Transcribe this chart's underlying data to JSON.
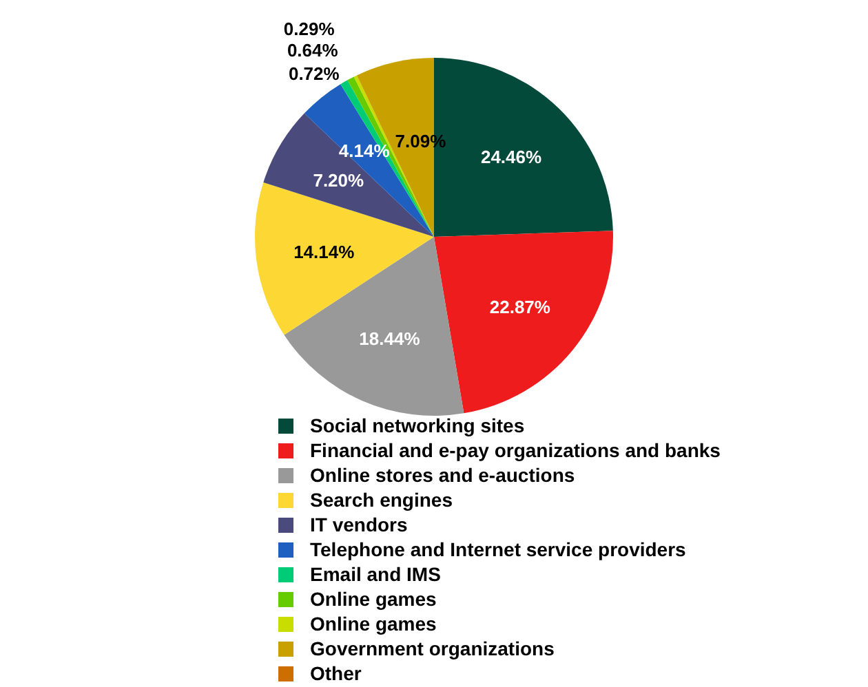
{
  "chart_data": {
    "type": "pie",
    "categories": [
      "Social networking sites",
      "Financial and e-pay organizations and banks",
      "Online stores and e-auctions",
      "Search engines",
      "IT vendors",
      "Telephone and Internet service providers",
      "Email and IMS",
      "Online games",
      "Online games",
      "Government organizations",
      "Other"
    ],
    "values": [
      24.46,
      22.87,
      18.44,
      14.14,
      7.2,
      4.14,
      0.72,
      0.64,
      0.29,
      7.09,
      null
    ],
    "value_labels": [
      "24.46%",
      "22.87%",
      "18.44%",
      "14.14%",
      "7.20%",
      "4.14%",
      "0.72%",
      "0.64%",
      "0.29%",
      "7.09%",
      null
    ],
    "colors": [
      "#034a3b",
      "#ee1c1c",
      "#999999",
      "#fdd835",
      "#4a4a7c",
      "#1f5fbf",
      "#00cc77",
      "#66cc00",
      "#c8dd00",
      "#c8a000",
      "#cc6f00"
    ],
    "legend": "bottom"
  }
}
